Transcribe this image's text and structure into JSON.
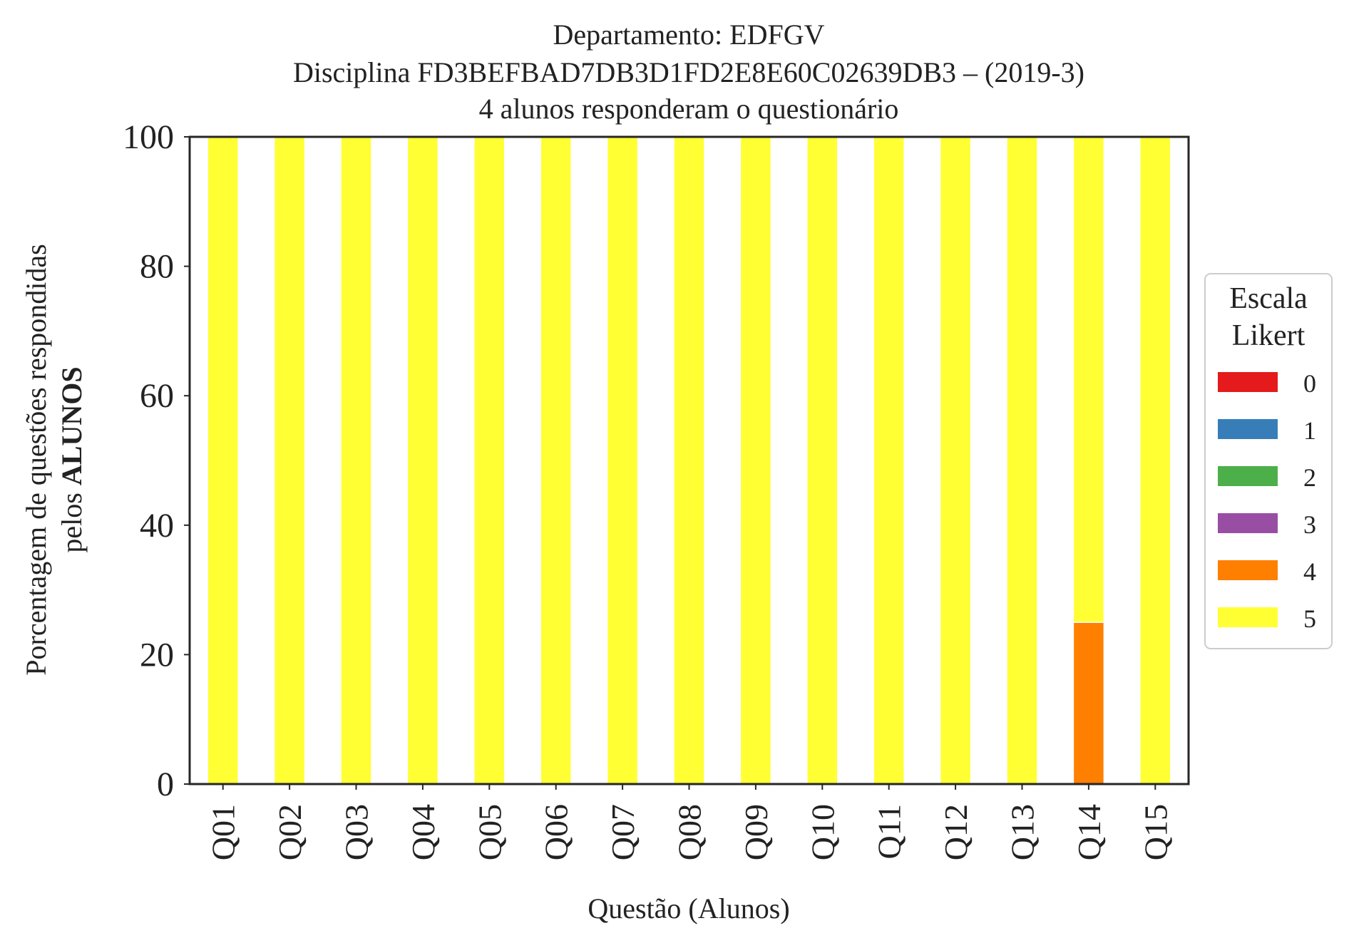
{
  "chart_data": {
    "type": "bar",
    "stacked": true,
    "title_lines": [
      "Departamento: EDFGV",
      "Disciplina FD3BEFBAD7DB3D1FD2E8E60C02639DB3 – (2019-3)",
      "4 alunos responderam o questionário"
    ],
    "xlabel": "Questão (Alunos)",
    "ylabel_line1": "Porcentagem de questões respondidas",
    "ylabel_line2_prefix": "pelos ",
    "ylabel_line2_bold": "ALUNOS",
    "ylim": [
      0,
      100
    ],
    "yticks": [
      0,
      20,
      40,
      60,
      80,
      100
    ],
    "categories": [
      "Q01",
      "Q02",
      "Q03",
      "Q04",
      "Q05",
      "Q06",
      "Q07",
      "Q08",
      "Q09",
      "Q10",
      "Q11",
      "Q12",
      "Q13",
      "Q14",
      "Q15"
    ],
    "legend_title_lines": [
      "Escala",
      "Likert"
    ],
    "legend_position": "center-right, outside",
    "grid": false,
    "series": [
      {
        "name": "0",
        "color": "#e41a1c",
        "values": [
          0,
          0,
          0,
          0,
          0,
          0,
          0,
          0,
          0,
          0,
          0,
          0,
          0,
          0,
          0
        ]
      },
      {
        "name": "1",
        "color": "#377eb8",
        "values": [
          0,
          0,
          0,
          0,
          0,
          0,
          0,
          0,
          0,
          0,
          0,
          0,
          0,
          0,
          0
        ]
      },
      {
        "name": "2",
        "color": "#4daf4a",
        "values": [
          0,
          0,
          0,
          0,
          0,
          0,
          0,
          0,
          0,
          0,
          0,
          0,
          0,
          0,
          0
        ]
      },
      {
        "name": "3",
        "color": "#984ea3",
        "values": [
          0,
          0,
          0,
          0,
          0,
          0,
          0,
          0,
          0,
          0,
          0,
          0,
          0,
          0,
          0
        ]
      },
      {
        "name": "4",
        "color": "#ff7f00",
        "values": [
          0,
          0,
          0,
          0,
          0,
          0,
          0,
          0,
          0,
          0,
          0,
          0,
          0,
          25,
          0
        ]
      },
      {
        "name": "5",
        "color": "#ffff33",
        "values": [
          100,
          100,
          100,
          100,
          100,
          100,
          100,
          100,
          100,
          100,
          100,
          100,
          100,
          75,
          100
        ]
      }
    ]
  }
}
